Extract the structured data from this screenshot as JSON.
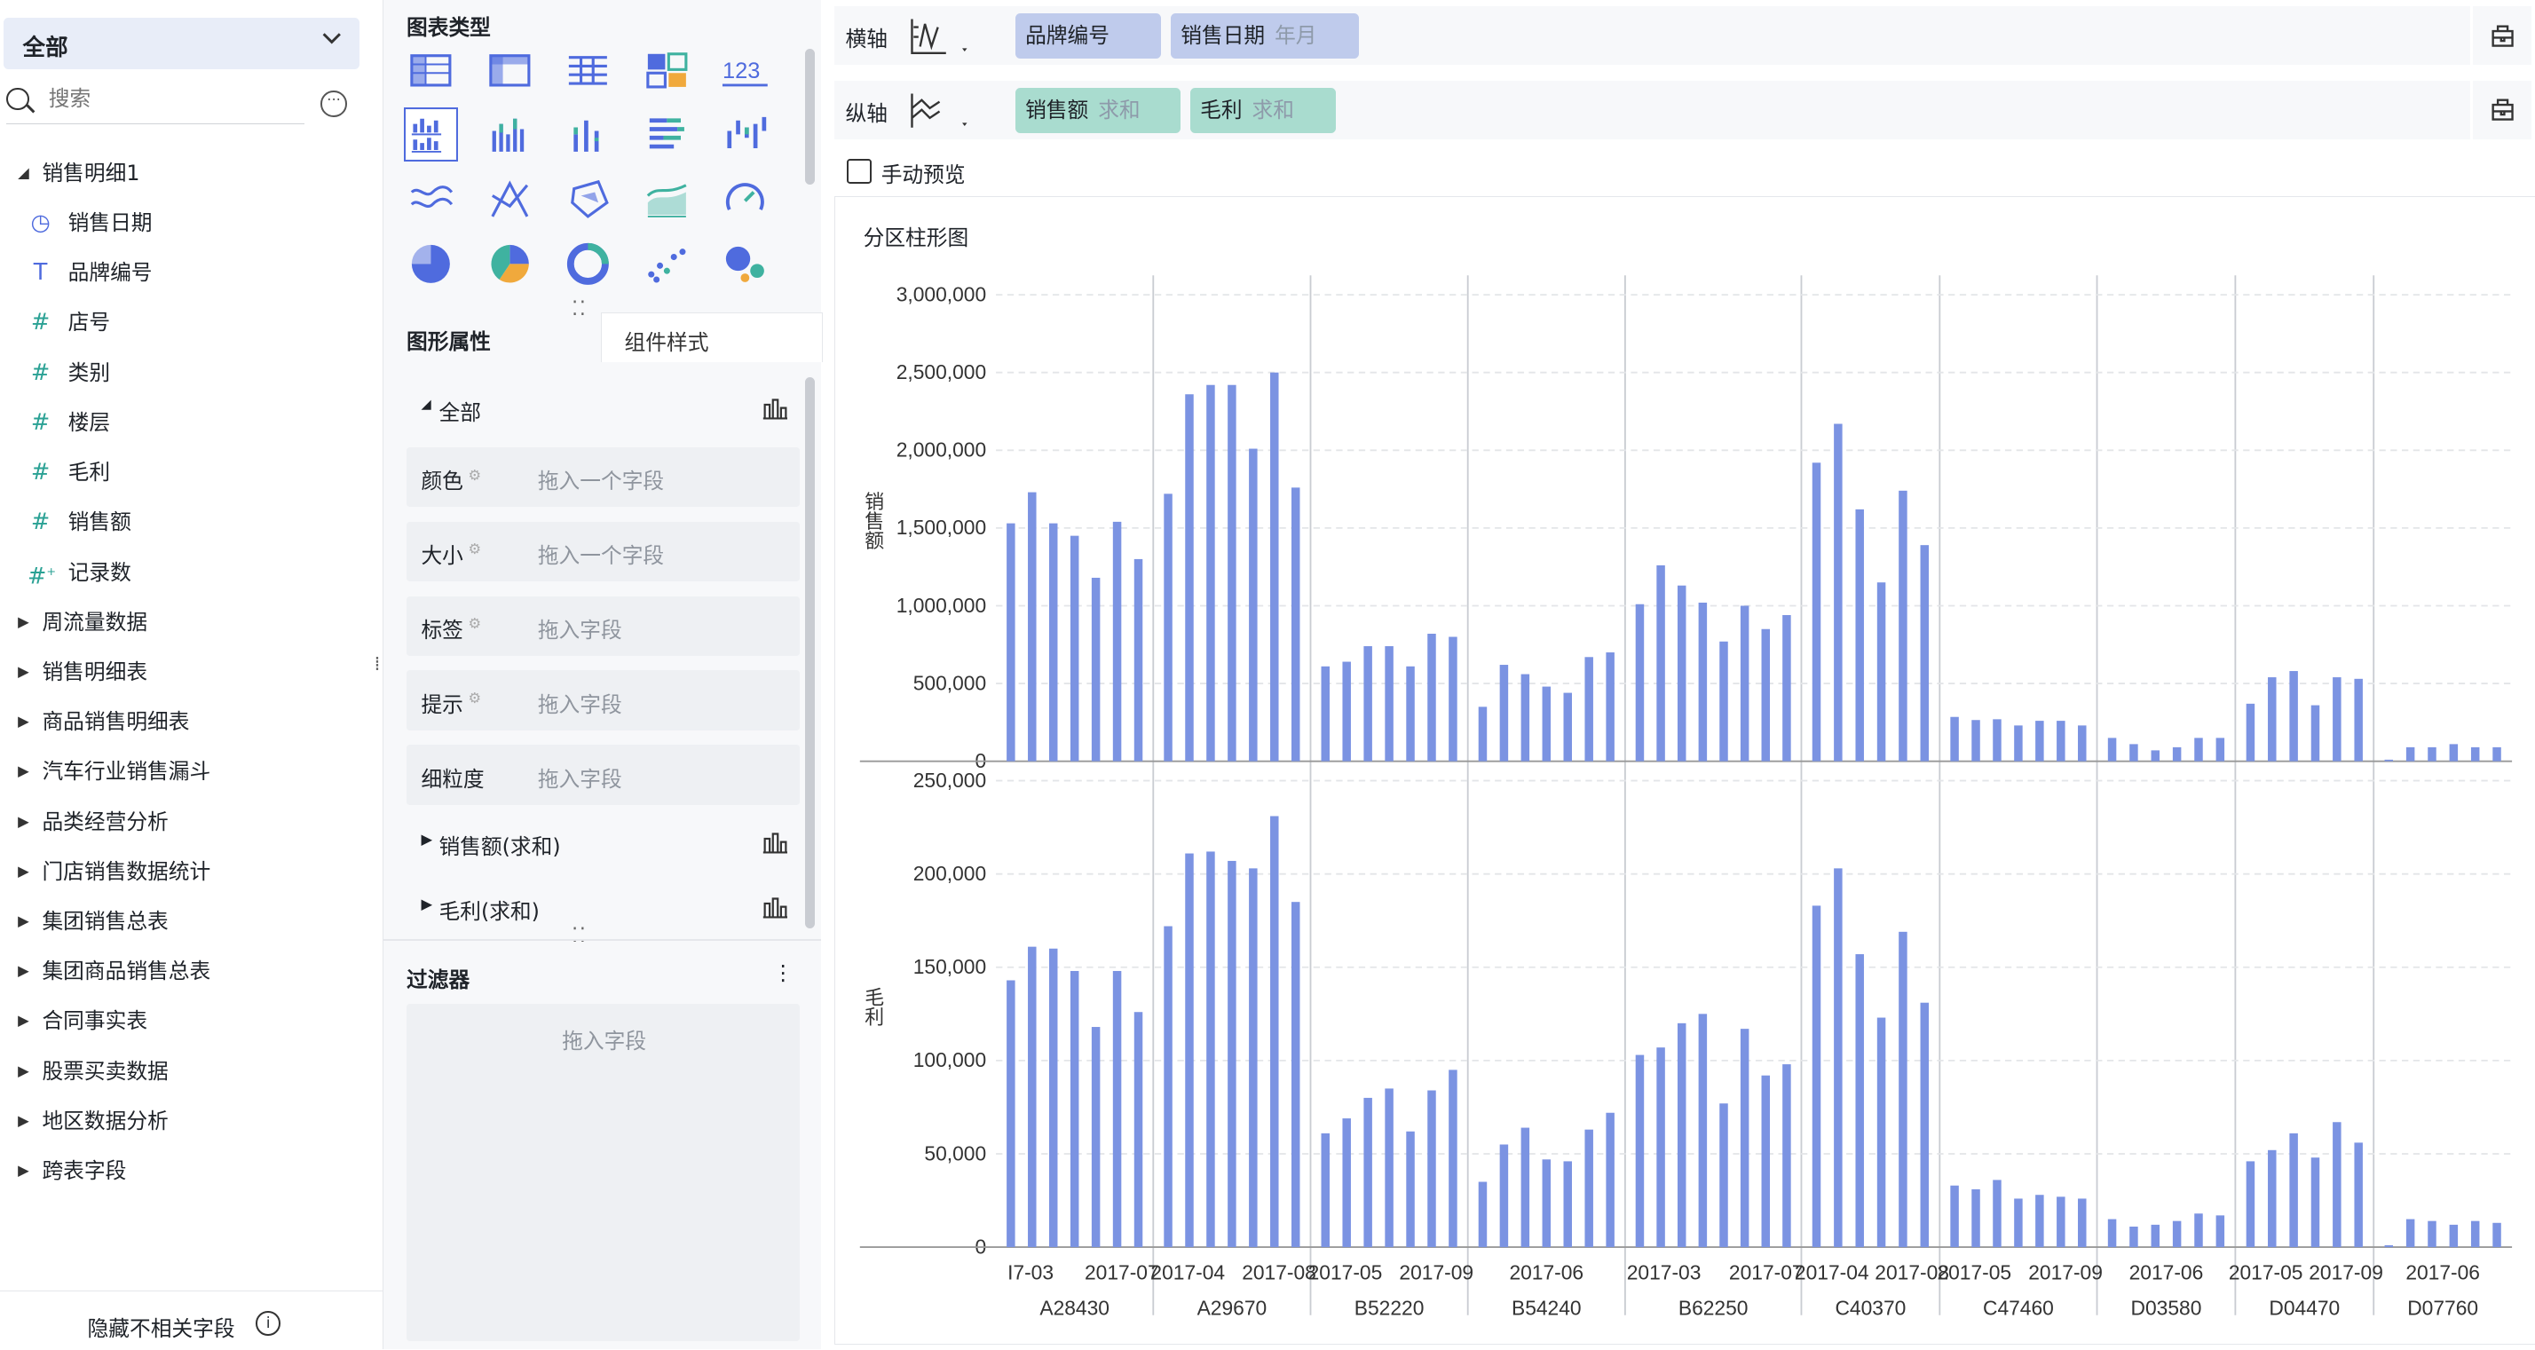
{
  "left": {
    "dropdown_label": "全部",
    "search_placeholder": "搜索",
    "tree": [
      {
        "label": "销售明细1",
        "expanded": true,
        "children": [
          {
            "icon": "clock-icon",
            "label": "销售日期"
          },
          {
            "icon": "text-icon",
            "label": "品牌编号"
          },
          {
            "icon": "number-icon",
            "label": "店号"
          },
          {
            "icon": "number-icon",
            "label": "类别"
          },
          {
            "icon": "number-icon",
            "label": "楼层"
          },
          {
            "icon": "number-icon",
            "label": "毛利"
          },
          {
            "icon": "number-icon",
            "label": "销售额"
          },
          {
            "icon": "calc-number-icon",
            "label": "记录数"
          }
        ]
      },
      {
        "label": "周流量数据"
      },
      {
        "label": "销售明细表"
      },
      {
        "label": "商品销售明细表"
      },
      {
        "label": "汽车行业销售漏斗"
      },
      {
        "label": "品类经营分析"
      },
      {
        "label": "门店销售数据统计"
      },
      {
        "label": "集团销售总表"
      },
      {
        "label": "集团商品销售总表"
      },
      {
        "label": "合同事实表"
      },
      {
        "label": "股票买卖数据"
      },
      {
        "label": "地区数据分析"
      },
      {
        "label": "跨表字段"
      }
    ],
    "hide_label": "隐藏不相关字段"
  },
  "middle": {
    "chart_type_title": "图表类型",
    "chart_type_selected_index": 5,
    "props_tab": "图形属性",
    "style_tab": "组件样式",
    "section_all": "全部",
    "fields": [
      {
        "label": "颜色",
        "placeholder": "拖入一个字段"
      },
      {
        "label": "大小",
        "placeholder": "拖入一个字段"
      },
      {
        "label": "标签",
        "placeholder": "拖入字段"
      },
      {
        "label": "提示",
        "placeholder": "拖入字段"
      },
      {
        "label": "细粒度",
        "placeholder": "拖入字段"
      }
    ],
    "section_sales": "销售额(求和)",
    "section_profit": "毛利(求和)",
    "filter_title": "过滤器",
    "filter_placeholder": "拖入字段"
  },
  "right": {
    "x_axis_label": "横轴",
    "y_axis_label": "纵轴",
    "x_pills": [
      {
        "name": "品牌编号",
        "sub": ""
      },
      {
        "name": "销售日期",
        "sub": "年月"
      }
    ],
    "y_pills": [
      {
        "name": "销售额",
        "sub": "求和"
      },
      {
        "name": "毛利",
        "sub": "求和"
      }
    ],
    "manual_preview": "手动预览",
    "chart_title": "分区柱形图"
  },
  "colors": {
    "bar": "#7b93e2",
    "accent": "#4f6bde",
    "pill_blue": "#bfcbec",
    "pill_green": "#a9dccf"
  },
  "chart_data": {
    "type": "bar",
    "title": "分区柱形图",
    "groups": [
      {
        "brand": "A28430",
        "ticks": [
          "I7-03",
          "2017-07"
        ]
      },
      {
        "brand": "A29670",
        "ticks": [
          "2017-04",
          "2017-08"
        ]
      },
      {
        "brand": "B52220",
        "ticks": [
          "2017-05",
          "2017-09"
        ]
      },
      {
        "brand": "B54240",
        "ticks": [
          "2017-06"
        ]
      },
      {
        "brand": "B62250",
        "ticks": [
          "2017-03",
          "2017-07"
        ]
      },
      {
        "brand": "C40370",
        "ticks": [
          "2017-04",
          "2017-08"
        ]
      },
      {
        "brand": "C47460",
        "ticks": [
          "2017-05",
          "2017-09"
        ]
      },
      {
        "brand": "D03580",
        "ticks": [
          "2017-06"
        ]
      },
      {
        "brand": "D04470",
        "ticks": [
          "2017-05",
          "2017-09"
        ]
      },
      {
        "brand": "D07760",
        "ticks": [
          "2017-06"
        ]
      }
    ],
    "series": [
      {
        "name": "销售额",
        "ylabel": "销售额",
        "ylim": [
          0,
          3000000
        ],
        "yticks": [
          "3,000,000",
          "2,500,000",
          "2,000,000",
          "1,500,000",
          "1,000,000",
          "500,000",
          "0"
        ],
        "values": [
          [
            1530000,
            1730000,
            1530000,
            1450000,
            1180000,
            1540000,
            1300000
          ],
          [
            1720000,
            2360000,
            2420000,
            2420000,
            2010000,
            2500000,
            1760000
          ],
          [
            610000,
            640000,
            740000,
            740000,
            610000,
            820000,
            800000
          ],
          [
            350000,
            620000,
            560000,
            480000,
            440000,
            670000,
            700000
          ],
          [
            1010000,
            1260000,
            1130000,
            1020000,
            770000,
            1000000,
            850000,
            940000
          ],
          [
            1920000,
            2170000,
            1620000,
            1150000,
            1740000,
            1390000
          ],
          [
            285000,
            265000,
            270000,
            230000,
            260000,
            260000,
            230000
          ],
          [
            150000,
            110000,
            70000,
            90000,
            150000,
            150000
          ],
          [
            370000,
            540000,
            580000,
            360000,
            540000,
            530000
          ],
          [
            10000,
            90000,
            90000,
            110000,
            90000,
            90000
          ]
        ]
      },
      {
        "name": "毛利",
        "ylabel": "毛利",
        "ylim": [
          0,
          250000
        ],
        "yticks": [
          "250,000",
          "200,000",
          "150,000",
          "100,000",
          "50,000",
          "0"
        ],
        "values": [
          [
            143000,
            161000,
            160000,
            148000,
            118000,
            148000,
            126000
          ],
          [
            172000,
            211000,
            212000,
            207000,
            203000,
            231000,
            185000
          ],
          [
            61000,
            69000,
            80000,
            85000,
            62000,
            84000,
            95000
          ],
          [
            35000,
            55000,
            64000,
            47000,
            46000,
            63000,
            72000
          ],
          [
            103000,
            107000,
            120000,
            125000,
            77000,
            117000,
            92000,
            98000
          ],
          [
            183000,
            203000,
            157000,
            123000,
            169000,
            131000
          ],
          [
            33000,
            31000,
            36000,
            26000,
            28000,
            27000,
            26000
          ],
          [
            15000,
            11000,
            12000,
            14000,
            18000,
            17000
          ],
          [
            46000,
            52000,
            61000,
            48000,
            67000,
            56000
          ],
          [
            1000,
            15000,
            14000,
            12000,
            14000,
            13000
          ]
        ]
      }
    ]
  }
}
